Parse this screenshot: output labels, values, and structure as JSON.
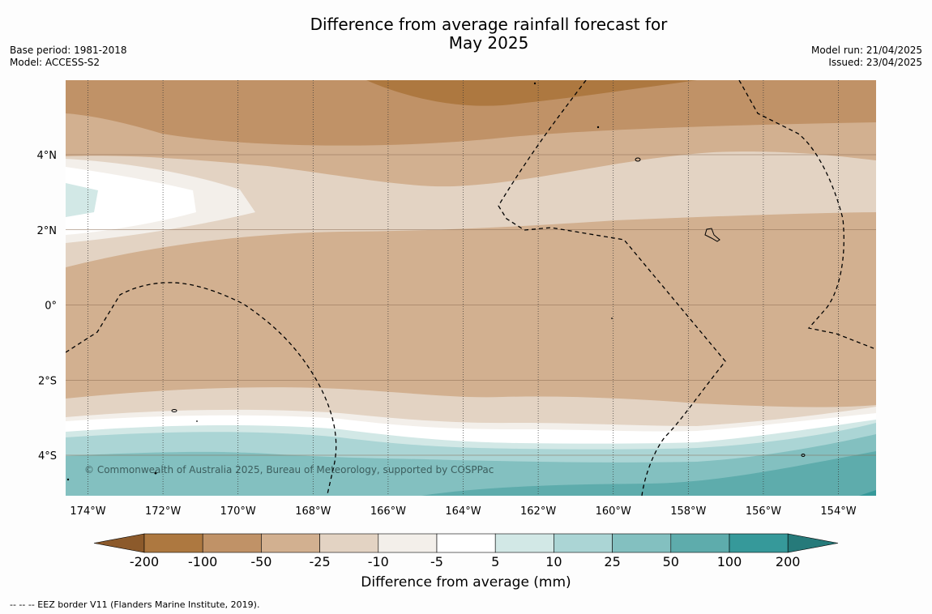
{
  "title": {
    "line1": "Difference from average rainfall forecast for",
    "line2": "May 2025"
  },
  "meta_left": {
    "base_period": "Base period: 1981-2018",
    "model": "Model: ACCESS-S2"
  },
  "meta_right": {
    "model_run": "Model run: 21/04/2025",
    "issued": "Issued: 23/04/2025"
  },
  "map": {
    "lon_labels": [
      "174°W",
      "172°W",
      "170°W",
      "168°W",
      "166°W",
      "164°W",
      "162°W",
      "160°W",
      "158°W",
      "156°W",
      "154°W"
    ],
    "lat_labels": [
      "4°N",
      "2°N",
      "0°",
      "2°S",
      "4°S"
    ],
    "credit": "© Commonwealth of Australia 2025, Bureau of Meteorology, supported by COSPPac"
  },
  "colorbar": {
    "ticks": [
      "-200",
      "-100",
      "-50",
      "-25",
      "-10",
      "-5",
      "5",
      "10",
      "25",
      "50",
      "100",
      "200"
    ],
    "colors": [
      "#8c5a2b",
      "#ad7840",
      "#c09267",
      "#d2b090",
      "#e3d3c3",
      "#f3efea",
      "#ffffff",
      "#d2e8e6",
      "#abd5d5",
      "#83c0c0",
      "#5eacac",
      "#36999a",
      "#267a7a"
    ],
    "label": "Difference from average (mm)"
  },
  "footnote": "--  --  -- EEZ border V11 (Flanders Marine Institute, 2019)."
}
